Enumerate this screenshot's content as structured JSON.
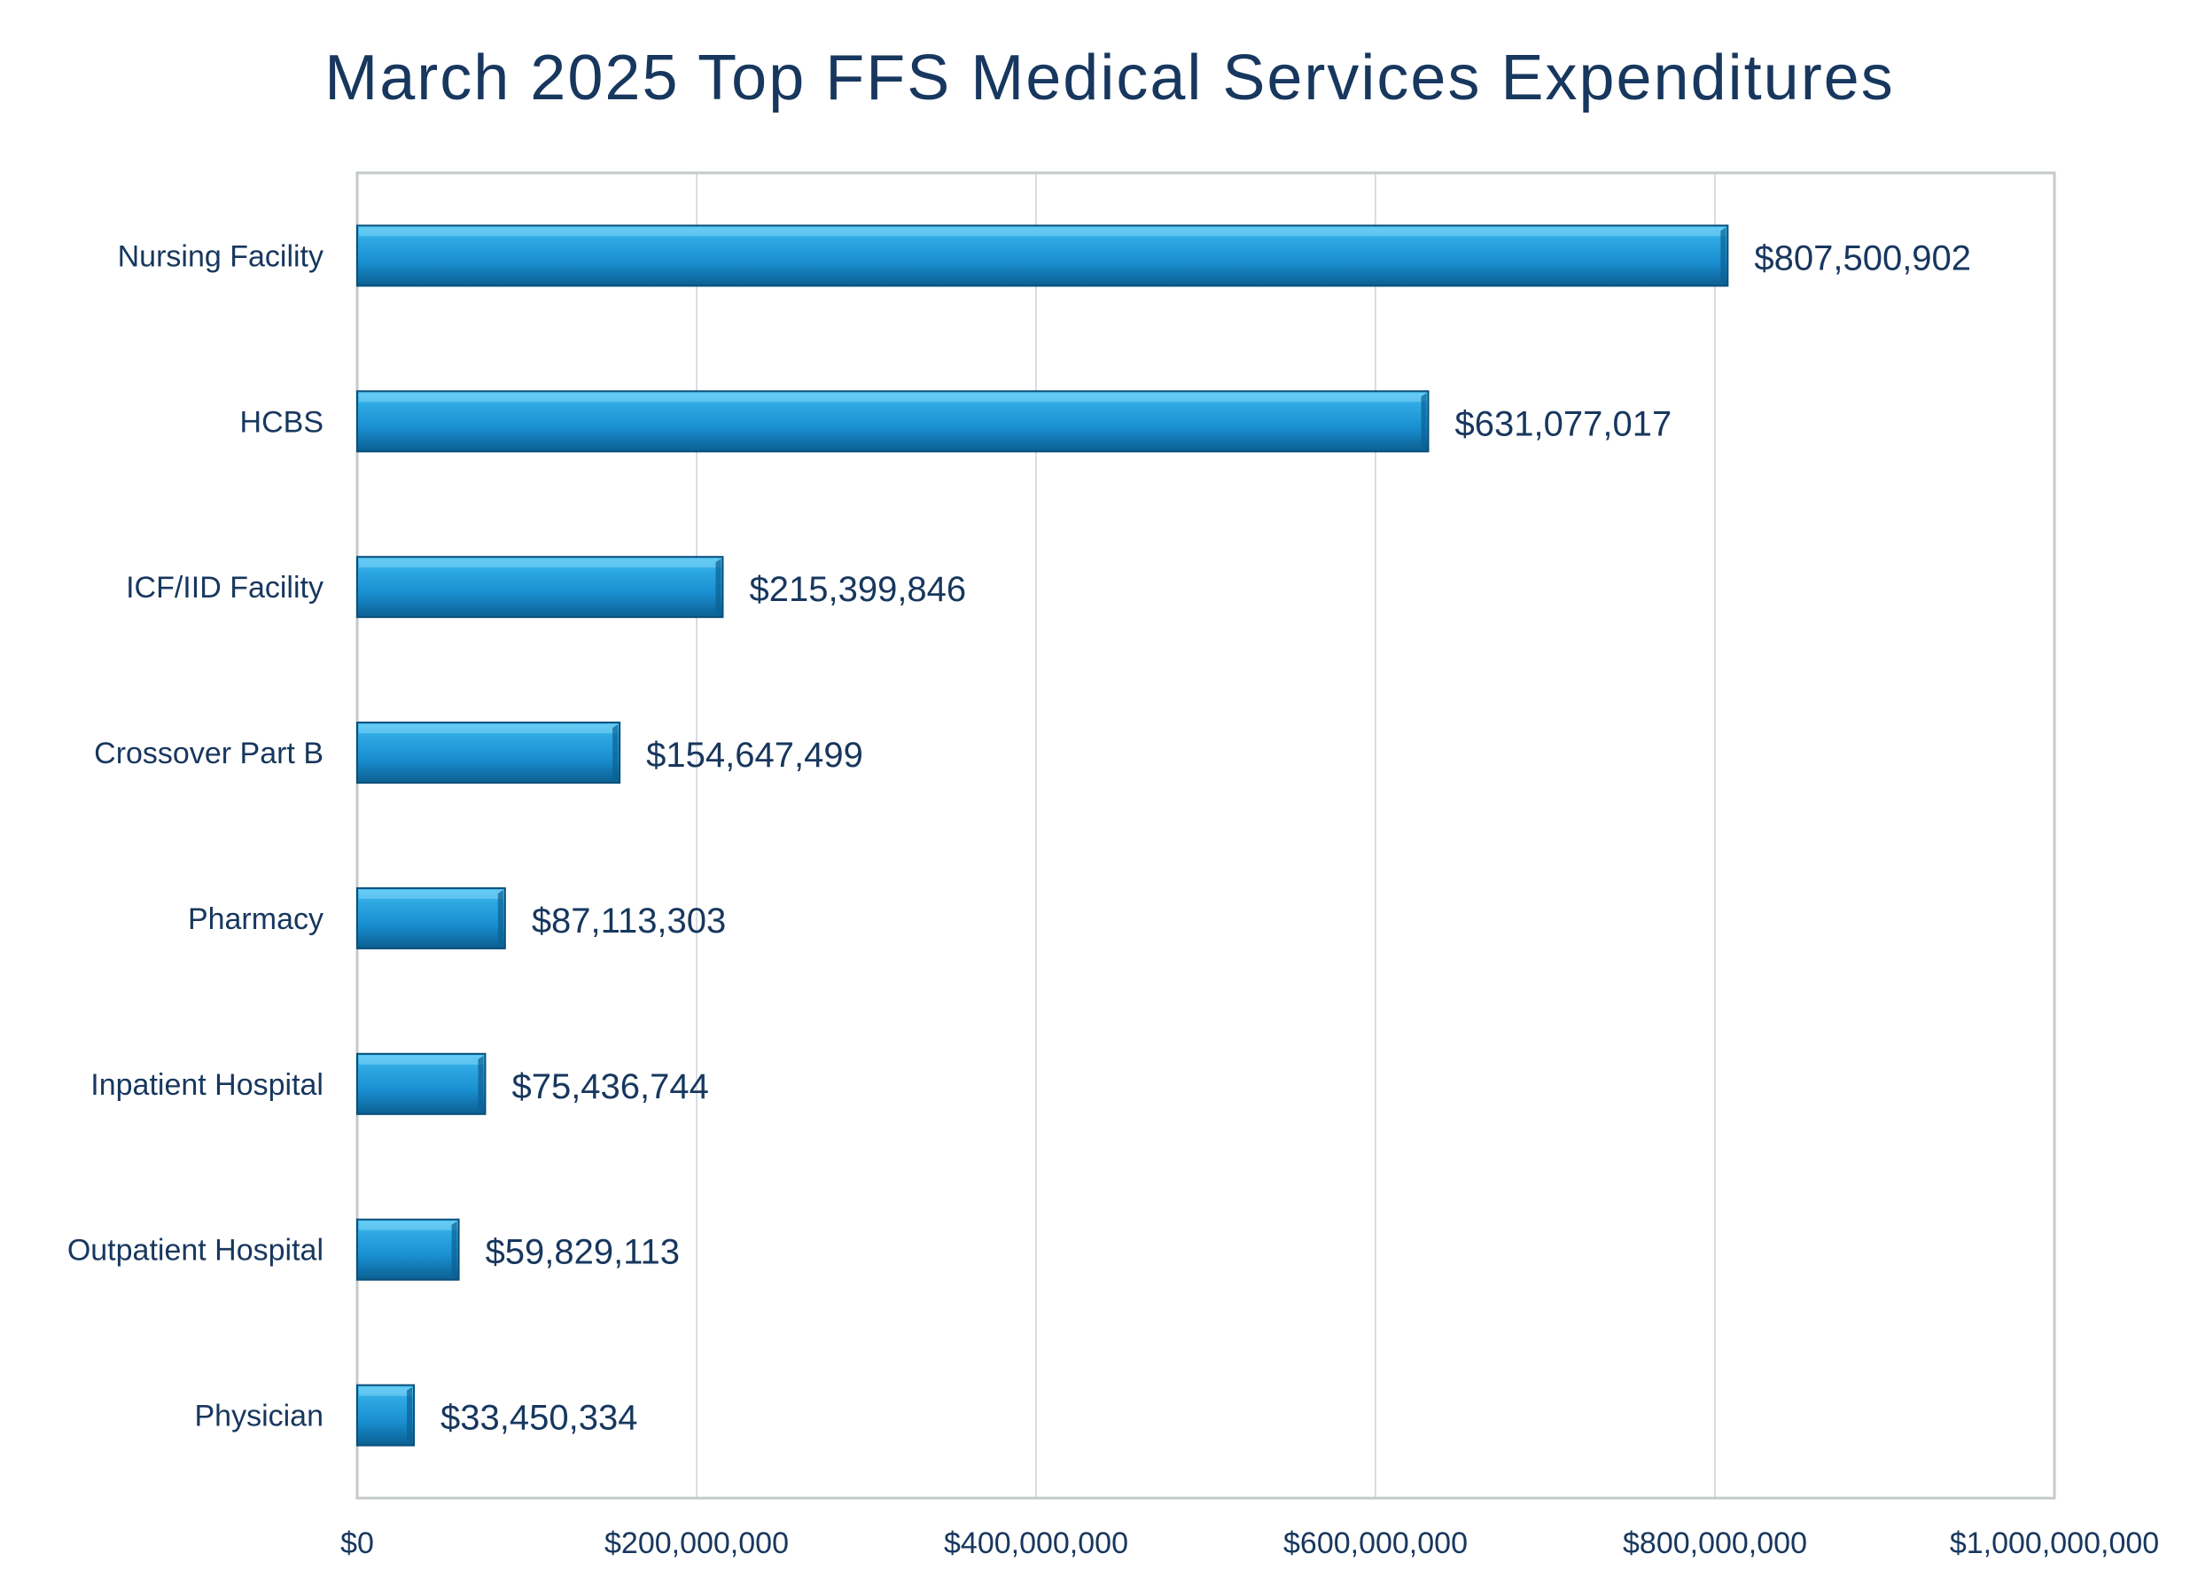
{
  "chart_data": {
    "type": "bar",
    "orientation": "horizontal",
    "title": "March 2025 Top FFS Medical Services Expenditures",
    "categories": [
      "Nursing Facility",
      "HCBS",
      "ICF/IID Facility",
      "Crossover Part B",
      "Pharmacy",
      "Inpatient Hospital",
      "Outpatient Hospital",
      "Physician"
    ],
    "values": [
      807500902,
      631077017,
      215399846,
      154647499,
      87113303,
      75436744,
      59829113,
      33450334
    ],
    "data_labels": [
      "$807,500,902",
      "$631,077,017",
      "$215,399,846",
      "$154,647,499",
      "$87,113,303",
      "$75,436,744",
      "$59,829,113",
      "$33,450,334"
    ],
    "x_ticks": [
      0,
      200000000,
      400000000,
      600000000,
      800000000,
      1000000000
    ],
    "x_tick_labels": [
      "$0",
      "$200,000,000",
      "$400,000,000",
      "$600,000,000",
      "$800,000,000",
      "$1,000,000,000"
    ],
    "xlim": [
      0,
      1000000000
    ],
    "xlabel": "",
    "ylabel": "",
    "grid": "vertical",
    "legend": "none",
    "colors": {
      "bar": "#1a8fd1",
      "bar_light": "#4cc3f2",
      "bar_dark": "#0b5f91",
      "text": "#17375e",
      "grid": "#d9dde0",
      "frame": "#c4c9cc",
      "axis": "#9aa0a4"
    }
  }
}
